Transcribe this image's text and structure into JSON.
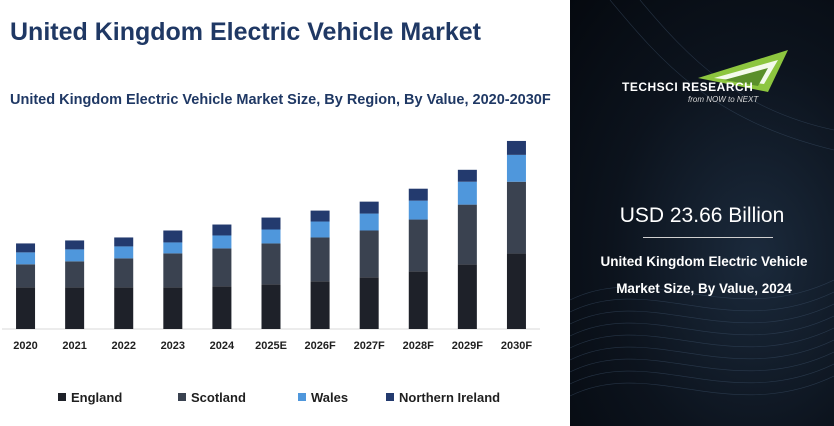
{
  "header": {
    "title": "United Kingdom Electric Vehicle Market",
    "subtitle": "United Kingdom Electric Vehicle Market Size, By Region, By Value, 2020-2030F"
  },
  "colors": {
    "england": "#1e2129",
    "scotland": "#3a4250",
    "wales": "#4f97dc",
    "northern_ireland": "#233a6e"
  },
  "chart_data": {
    "type": "bar",
    "stacked": true,
    "categories": [
      "2020",
      "2021",
      "2022",
      "2023",
      "2024",
      "2025E",
      "2026F",
      "2027F",
      "2028F",
      "2029F",
      "2030F"
    ],
    "series": [
      {
        "name": "England",
        "values": [
          42,
          42,
          42,
          42,
          43,
          45,
          48,
          52,
          58,
          65,
          76
        ]
      },
      {
        "name": "Scotland",
        "values": [
          23,
          26,
          29,
          34,
          38,
          41,
          44,
          47,
          52,
          60,
          72
        ]
      },
      {
        "name": "Wales",
        "values": [
          12,
          12,
          12,
          11,
          13,
          14,
          16,
          17,
          19,
          23,
          27
        ]
      },
      {
        "name": "Northern Ireland",
        "values": [
          9,
          9,
          9,
          12,
          11,
          12,
          11,
          12,
          12,
          12,
          14
        ]
      }
    ],
    "ylim": [
      0,
      200
    ],
    "grid": false,
    "legend_position": "bottom"
  },
  "legend": [
    {
      "label": "England",
      "color": "#1e2129"
    },
    {
      "label": "Scotland",
      "color": "#3a4250"
    },
    {
      "label": "Wales",
      "color": "#4f97dc"
    },
    {
      "label": "Northern Ireland",
      "color": "#233a6e"
    }
  ],
  "side_panel": {
    "logo_text": "TECHSCI RESEARCH",
    "logo_tagline": "from NOW to NEXT",
    "market_value": "USD  23.66 Billion",
    "market_label_line1": "United Kingdom Electric Vehicle",
    "market_label_line2": "Market  Size, By Value, 2024"
  }
}
